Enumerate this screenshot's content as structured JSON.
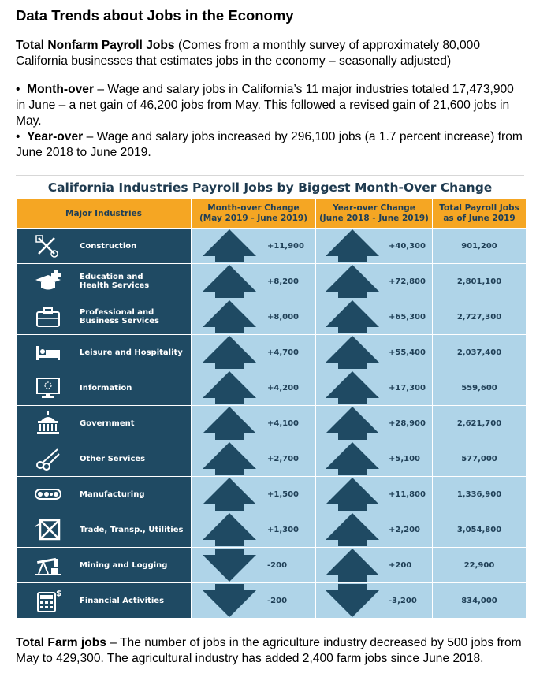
{
  "title": "Data Trends about Jobs in the Economy",
  "intro": {
    "bold": "Total Nonfarm Payroll Jobs",
    "rest": " (Comes from a monthly survey of approximately 80,000 California businesses that estimates jobs in the economy – seasonally adjusted)"
  },
  "bullets": [
    {
      "symbol": "•",
      "bold": "Month-over",
      "rest": " – Wage and salary jobs in California’s 11 major industries totaled 17,473,900 in June – a net gain of 46,200 jobs from May. This followed a revised gain of 21,600 jobs in May."
    },
    {
      "symbol": "•",
      "bold": "Year-over",
      "rest": " – Wage and salary jobs increased by 296,100 jobs (a 1.7 percent increase) from June 2018 to June 2019."
    }
  ],
  "table": {
    "title": "California Industries Payroll Jobs by Biggest Month-Over Change",
    "headers": {
      "industry": "Major Industries",
      "month_line1": "Month-over Change",
      "month_line2": "(May 2019 - June 2019)",
      "year_line1": "Year-over Change",
      "year_line2": "(June 2018 - June 2019)",
      "total_line1": "Total Payroll Jobs",
      "total_line2": "as of June 2019"
    },
    "colors": {
      "header_bg": "#f5a623",
      "industry_bg": "#1f4a63",
      "cell_bg": "#afd4e8",
      "arrow": "#1f4a63"
    },
    "rows": [
      {
        "label1": "Construction",
        "label2": "",
        "icon": "tools-icon",
        "month": "+11,900",
        "month_dir": "up",
        "year": "+40,300",
        "year_dir": "up",
        "total": "901,200"
      },
      {
        "label1": "Education and",
        "label2": "Health Services",
        "icon": "graduation-cap-icon",
        "month": "+8,200",
        "month_dir": "up",
        "year": "+72,800",
        "year_dir": "up",
        "total": "2,801,100"
      },
      {
        "label1": "Professional and",
        "label2": "Business Services",
        "icon": "briefcase-icon",
        "month": "+8,000",
        "month_dir": "up",
        "year": "+65,300",
        "year_dir": "up",
        "total": "2,727,300"
      },
      {
        "label1": "Leisure and Hospitality",
        "label2": "",
        "icon": "bed-icon",
        "month": "+4,700",
        "month_dir": "up",
        "year": "+55,400",
        "year_dir": "up",
        "total": "2,037,400"
      },
      {
        "label1": "Information",
        "label2": "",
        "icon": "monitor-icon",
        "month": "+4,200",
        "month_dir": "up",
        "year": "+17,300",
        "year_dir": "up",
        "total": "559,600"
      },
      {
        "label1": "Government",
        "label2": "",
        "icon": "capitol-icon",
        "month": "+4,100",
        "month_dir": "up",
        "year": "+28,900",
        "year_dir": "up",
        "total": "2,621,700"
      },
      {
        "label1": "Other Services",
        "label2": "",
        "icon": "scissors-icon",
        "month": "+2,700",
        "month_dir": "up",
        "year": "+5,100",
        "year_dir": "up",
        "total": "577,000"
      },
      {
        "label1": "Manufacturing",
        "label2": "",
        "icon": "conveyor-icon",
        "month": "+1,500",
        "month_dir": "up",
        "year": "+11,800",
        "year_dir": "up",
        "total": "1,336,900"
      },
      {
        "label1": "Trade, Transp., Utilities",
        "label2": "",
        "icon": "crate-icon",
        "month": "+1,300",
        "month_dir": "up",
        "year": "+2,200",
        "year_dir": "up",
        "total": "3,054,800"
      },
      {
        "label1": "Mining and Logging",
        "label2": "",
        "icon": "oil-pump-icon",
        "month": "-200",
        "month_dir": "down",
        "year": "+200",
        "year_dir": "up",
        "total": "22,900"
      },
      {
        "label1": "Financial Activities",
        "label2": "",
        "icon": "calculator-icon",
        "month": "-200",
        "month_dir": "down",
        "year": "-3,200",
        "year_dir": "down",
        "total": "834,000"
      }
    ]
  },
  "footer": {
    "bold": "Total Farm jobs",
    "rest": " – The number of jobs in the agriculture industry decreased by 500 jobs from May to 429,300. The agricultural industry has added 2,400 farm jobs since June 2018."
  }
}
